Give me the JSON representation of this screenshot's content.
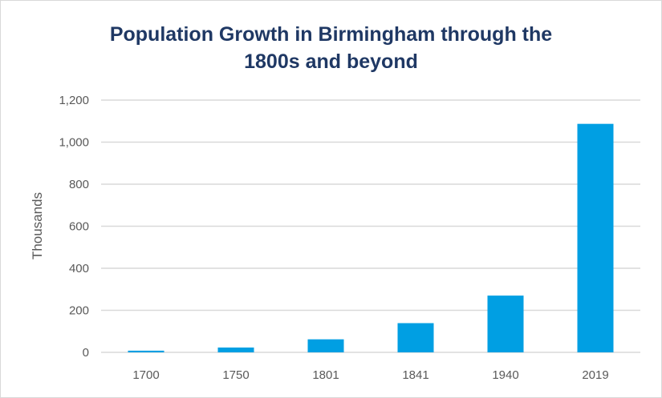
{
  "chart_data": {
    "type": "bar",
    "title_line1": "Population Growth in Birmingham through the",
    "title_line2": "1800s and beyond",
    "xlabel": "",
    "ylabel": "Thousands",
    "categories": [
      "1700",
      "1750",
      "1801",
      "1841",
      "1940",
      "2019"
    ],
    "values": [
      8,
      23,
      62,
      139,
      270,
      1087
    ],
    "ylim": [
      0,
      1200
    ],
    "yticks": [
      0,
      200,
      400,
      600,
      800,
      1000,
      1200
    ],
    "ytick_labels": [
      "0",
      "200",
      "400",
      "600",
      "800",
      "1,000",
      "1,200"
    ],
    "grid": true,
    "legend": "none",
    "bar_color": "#009fe3",
    "title_color": "#1f3864"
  }
}
